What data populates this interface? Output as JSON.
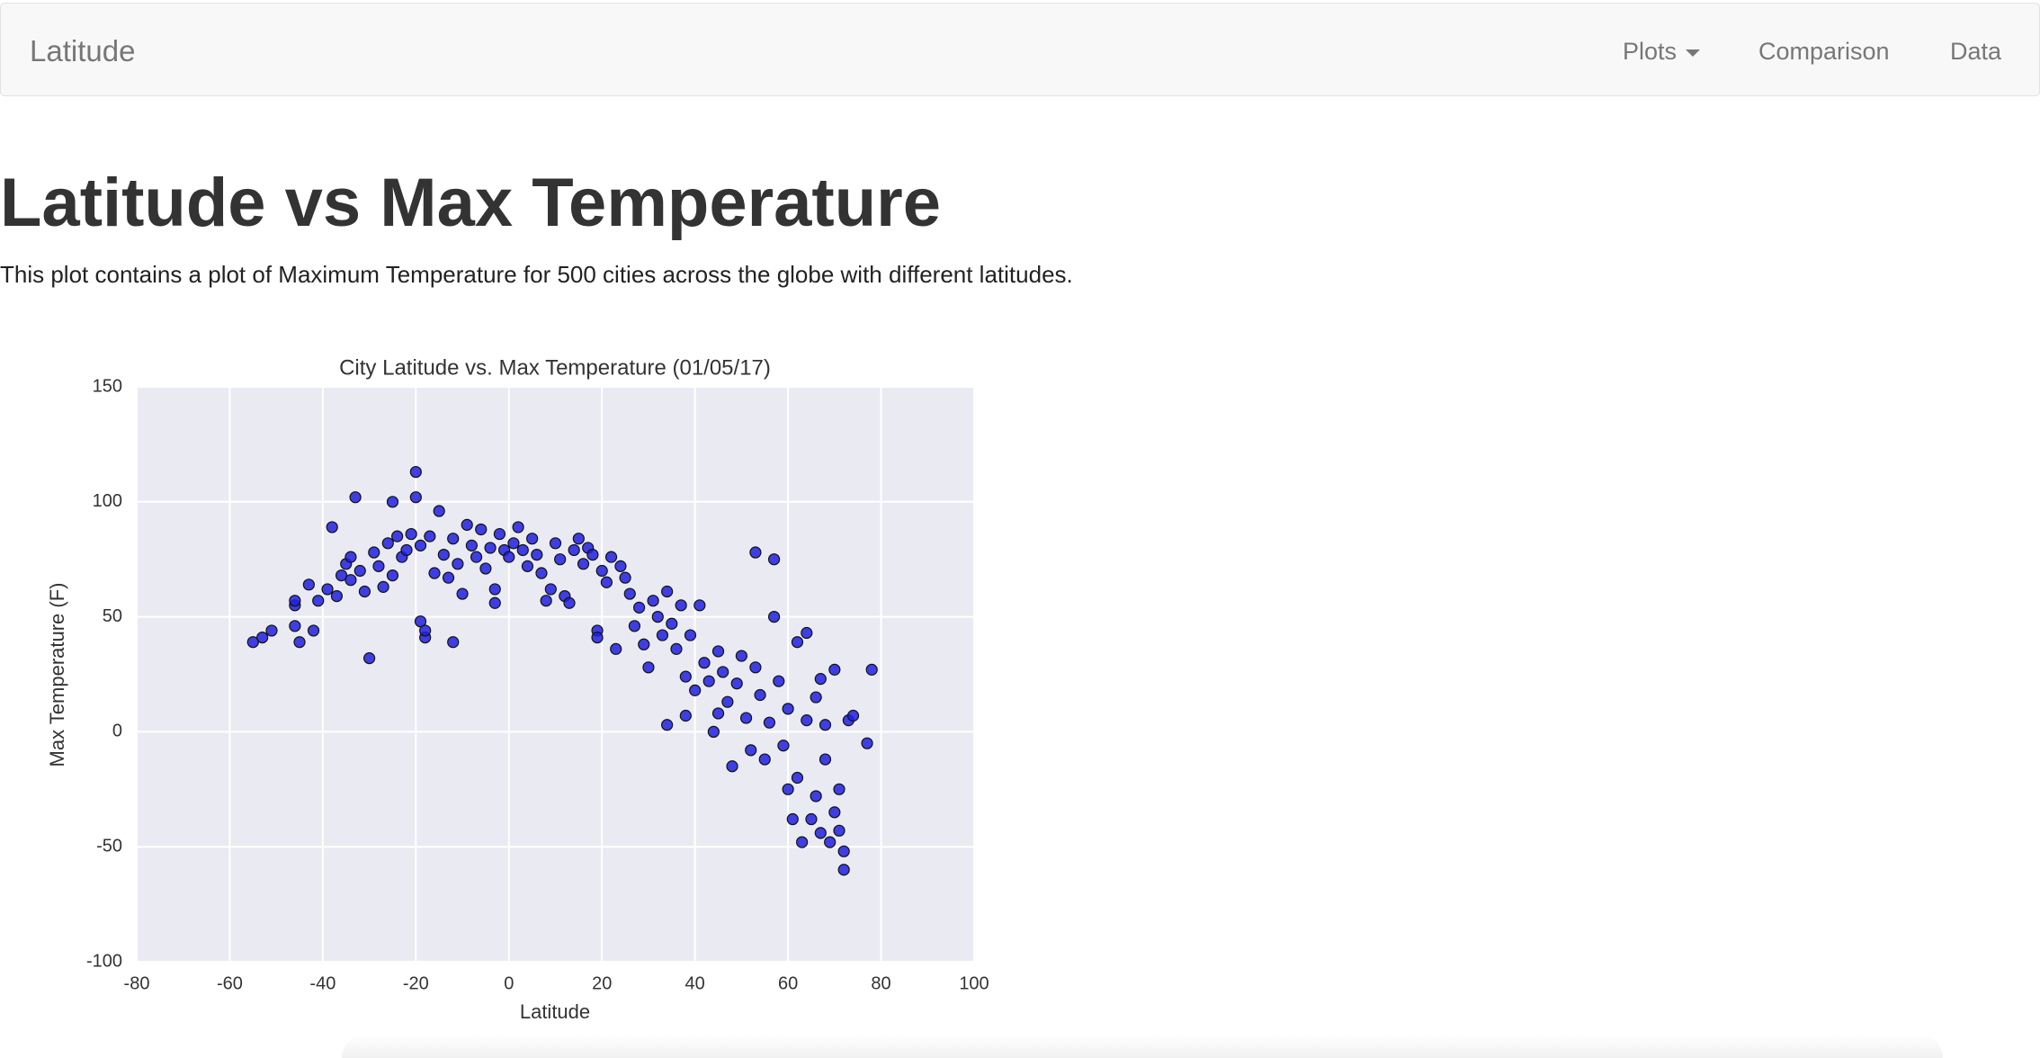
{
  "navbar": {
    "brand": "Latitude",
    "items": [
      "Plots",
      "Comparison",
      "Data"
    ]
  },
  "header": {
    "title": "Latitude vs Max Temperature",
    "description": "This plot contains a plot of Maximum Temperature for 500 cities across the globe with different latitudes."
  },
  "chart_data": {
    "type": "scatter",
    "title": "City Latitude vs. Max Temperature (01/05/17)",
    "x_label": "Latitude",
    "y_label": "Max Temperature (F)",
    "xlim": [
      -80,
      100
    ],
    "xticks": [
      -80,
      -60,
      -40,
      -20,
      0,
      20,
      40,
      60,
      80,
      100
    ],
    "ylim": [
      -100,
      150
    ],
    "yticks": [
      -100,
      -50,
      0,
      50,
      100,
      150
    ],
    "grid": true,
    "color": "#2020e0",
    "x": [
      -55,
      -53,
      -51,
      -46,
      -46,
      -46,
      -45,
      -43,
      -42,
      -41,
      -39,
      -38,
      -37,
      -36,
      -35,
      -34,
      -34,
      -33,
      -32,
      -31,
      -30,
      -29,
      -28,
      -27,
      -26,
      -25,
      -25,
      -24,
      -23,
      -22,
      -21,
      -20,
      -20,
      -19,
      -19,
      -18,
      -18,
      -17,
      -16,
      -15,
      -14,
      -13,
      -12,
      -12,
      -11,
      -10,
      -9,
      -8,
      -7,
      -6,
      -5,
      -4,
      -3,
      -3,
      -2,
      -1,
      0,
      1,
      2,
      3,
      4,
      5,
      6,
      7,
      8,
      9,
      10,
      11,
      12,
      13,
      14,
      15,
      16,
      17,
      18,
      19,
      19,
      20,
      21,
      22,
      23,
      24,
      25,
      26,
      27,
      28,
      29,
      30,
      31,
      32,
      33,
      34,
      34,
      35,
      36,
      37,
      38,
      38,
      39,
      40,
      41,
      42,
      43,
      44,
      45,
      45,
      46,
      47,
      48,
      49,
      50,
      51,
      52,
      53,
      53,
      54,
      55,
      56,
      57,
      57,
      58,
      59,
      60,
      60,
      61,
      62,
      62,
      63,
      64,
      64,
      65,
      66,
      66,
      67,
      67,
      68,
      68,
      69,
      70,
      70,
      71,
      71,
      72,
      72,
      73,
      74,
      77,
      78
    ],
    "values": [
      39,
      41,
      44,
      55,
      57,
      46,
      39,
      64,
      44,
      57,
      62,
      89,
      59,
      68,
      73,
      76,
      66,
      102,
      70,
      61,
      32,
      78,
      72,
      63,
      82,
      100,
      68,
      85,
      76,
      79,
      86,
      113,
      102,
      48,
      81,
      41,
      44,
      85,
      69,
      96,
      77,
      67,
      39,
      84,
      73,
      60,
      90,
      81,
      76,
      88,
      71,
      80,
      62,
      56,
      86,
      79,
      76,
      82,
      89,
      79,
      72,
      84,
      77,
      69,
      57,
      62,
      82,
      75,
      59,
      56,
      79,
      84,
      73,
      80,
      77,
      44,
      41,
      70,
      65,
      76,
      36,
      72,
      67,
      60,
      46,
      54,
      38,
      28,
      57,
      50,
      42,
      3,
      61,
      47,
      36,
      55,
      7,
      24,
      42,
      18,
      55,
      30,
      22,
      0,
      8,
      35,
      26,
      13,
      -15,
      21,
      33,
      6,
      -8,
      28,
      78,
      16,
      -12,
      4,
      50,
      75,
      22,
      -6,
      -25,
      10,
      -38,
      -20,
      39,
      -48,
      5,
      43,
      -38,
      15,
      -28,
      -44,
      23,
      -12,
      3,
      -48,
      -35,
      27,
      -25,
      -43,
      -52,
      -60,
      5,
      7,
      -5,
      27
    ]
  }
}
